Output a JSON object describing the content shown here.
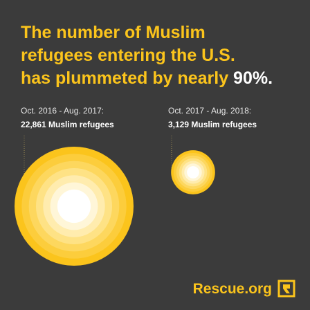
{
  "chart_data": {
    "type": "bubble",
    "title": "The number of Muslim refugees entering the U.S. has plummeted by nearly",
    "title_highlight": "90%.",
    "categories": [
      "Oct. 2016 - Aug. 2017:",
      "Oct. 2017 - Aug. 2018:"
    ],
    "values": [
      22861,
      3129
    ],
    "value_labels": [
      "22,861 Muslim refugees",
      "3,129 Muslim refugees"
    ],
    "color": "#fbc41c",
    "source": "Rescue.org"
  }
}
